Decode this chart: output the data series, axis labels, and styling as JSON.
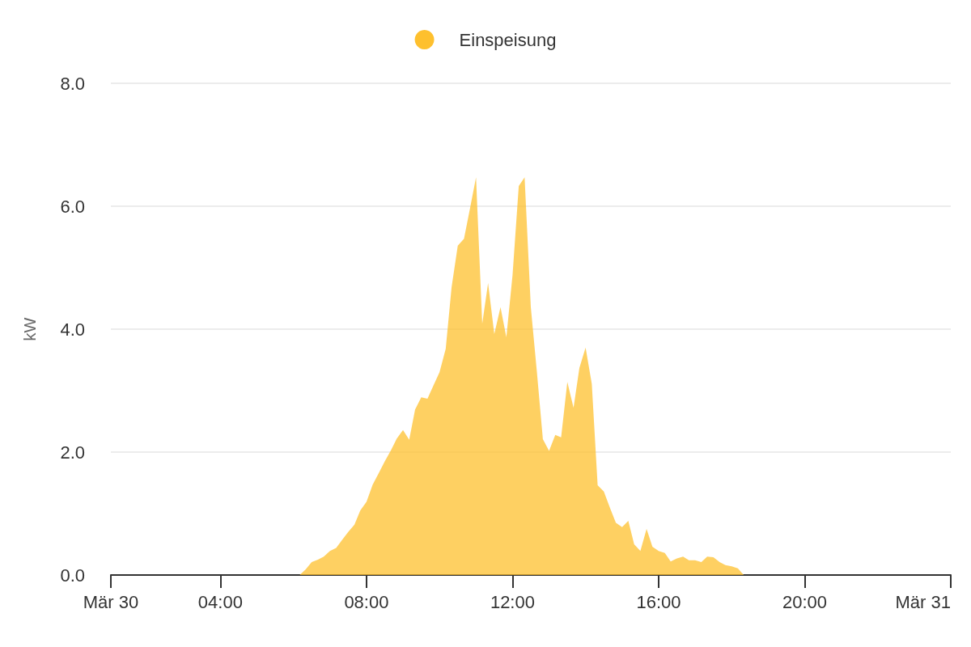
{
  "chart_data": {
    "type": "area",
    "ylabel": "kW",
    "legend": "top",
    "grid": "y",
    "xlim": [
      1,
      24
    ],
    "xticks": [
      {
        "value": 1,
        "label": "Mär 30"
      },
      {
        "value": 4,
        "label": "04:00"
      },
      {
        "value": 8,
        "label": "08:00"
      },
      {
        "value": 12,
        "label": "12:00"
      },
      {
        "value": 16,
        "label": "16:00"
      },
      {
        "value": 20,
        "label": "20:00"
      },
      {
        "value": 24,
        "label": "Mär 31"
      }
    ],
    "ylim": [
      0,
      8
    ],
    "yticks": [
      {
        "value": 0,
        "label": "0.0"
      },
      {
        "value": 2,
        "label": "2.0"
      },
      {
        "value": 4,
        "label": "4.0"
      },
      {
        "value": 6,
        "label": "6.0"
      },
      {
        "value": 8,
        "label": "8.0"
      }
    ],
    "x": [
      6.17,
      6.33,
      6.5,
      6.67,
      6.83,
      7,
      7.17,
      7.33,
      7.5,
      7.67,
      7.83,
      8,
      8.17,
      8.33,
      8.5,
      8.67,
      8.83,
      9,
      9.17,
      9.33,
      9.5,
      9.67,
      9.83,
      10,
      10.17,
      10.33,
      10.5,
      10.67,
      10.83,
      11,
      11.17,
      11.33,
      11.5,
      11.67,
      11.83,
      12,
      12.17,
      12.33,
      12.5,
      12.67,
      12.83,
      13,
      13.17,
      13.33,
      13.5,
      13.67,
      13.83,
      14,
      14.17,
      14.33,
      14.5,
      14.67,
      14.83,
      15,
      15.17,
      15.33,
      15.5,
      15.67,
      15.83,
      16,
      16.17,
      16.33,
      16.5,
      16.67,
      16.83,
      17,
      17.17,
      17.33,
      17.5,
      17.67,
      17.83,
      18,
      18.17,
      18.33
    ],
    "series": [
      {
        "name": "Einspeisung",
        "color": "#fec02e",
        "values": [
          0,
          0.09,
          0.21,
          0.25,
          0.3,
          0.39,
          0.44,
          0.57,
          0.7,
          0.82,
          1.05,
          1.19,
          1.47,
          1.65,
          1.85,
          2.03,
          2.22,
          2.36,
          2.2,
          2.69,
          2.89,
          2.87,
          3.08,
          3.3,
          3.68,
          4.68,
          5.36,
          5.47,
          5.95,
          6.47,
          4.09,
          4.75,
          3.92,
          4.36,
          3.87,
          4.88,
          6.33,
          6.47,
          4.36,
          3.28,
          2.21,
          2.02,
          2.28,
          2.24,
          3.14,
          2.72,
          3.37,
          3.7,
          3.11,
          1.46,
          1.36,
          1.09,
          0.85,
          0.78,
          0.88,
          0.5,
          0.39,
          0.75,
          0.46,
          0.39,
          0.36,
          0.22,
          0.27,
          0.3,
          0.24,
          0.24,
          0.21,
          0.3,
          0.29,
          0.21,
          0.16,
          0.14,
          0.11,
          0
        ]
      }
    ]
  }
}
